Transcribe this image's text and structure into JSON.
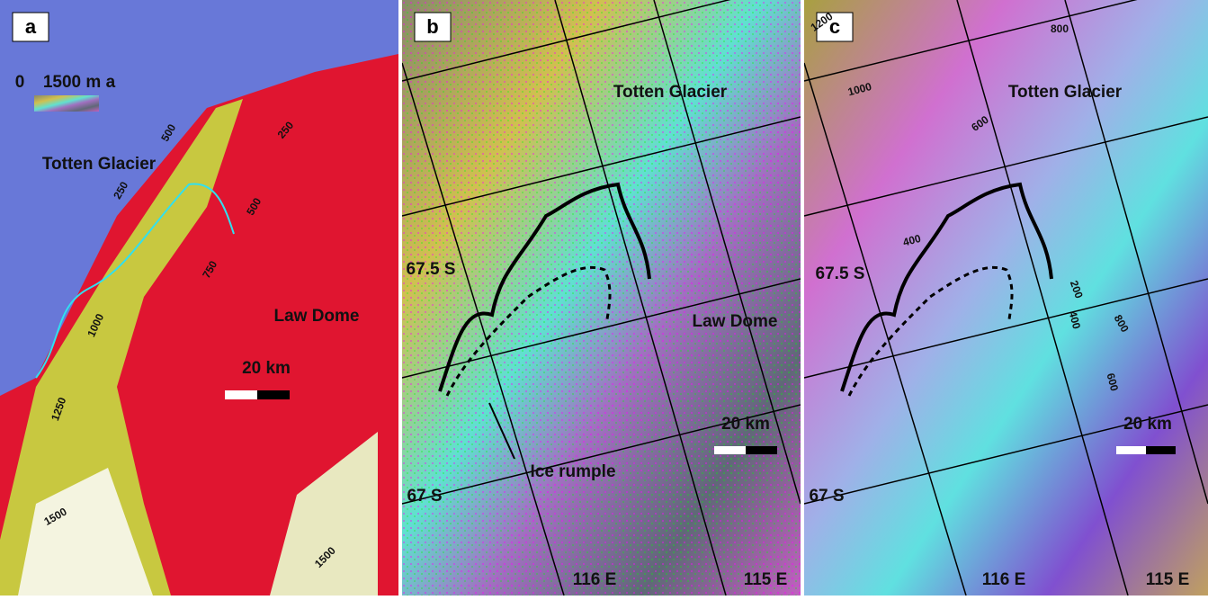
{
  "panels": [
    {
      "letter": "a",
      "texts": [
        "0",
        "1500 m a",
        "Totten Glacier",
        "Law Dome",
        "20 km",
        "500",
        "250",
        "250",
        "500",
        "750",
        "1000",
        "1250",
        "1500",
        "1500"
      ]
    },
    {
      "letter": "b",
      "texts": [
        "Totten Glacier",
        "67.5 S",
        "Law Dome",
        "20 km",
        "Ice rumple",
        "67 S",
        "116 E",
        "115 E"
      ]
    },
    {
      "letter": "c",
      "texts": [
        "1200",
        "800",
        "1000",
        "Totten Glacier",
        "600",
        "400",
        "67.5 S",
        "200",
        "400",
        "800",
        "600",
        "20 km",
        "67 S",
        "116 E",
        "115 E"
      ]
    }
  ]
}
